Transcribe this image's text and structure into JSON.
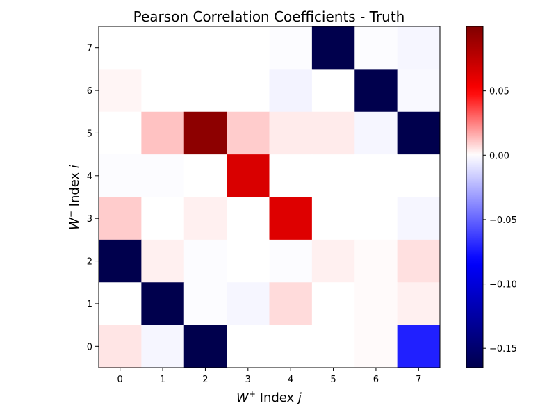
{
  "chart_data": {
    "type": "heatmap",
    "title": "Pearson Correlation Coefficients - Truth",
    "xlabel_main": "W",
    "xlabel_sup": "+",
    "xlabel_rest": " Index ",
    "xlabel_var": "j",
    "ylabel_main": "W",
    "ylabel_sup": "−",
    "ylabel_rest": " Index ",
    "ylabel_var": "i",
    "x_ticks": [
      "0",
      "1",
      "2",
      "3",
      "4",
      "5",
      "6",
      "7"
    ],
    "y_ticks": [
      "0",
      "1",
      "2",
      "3",
      "4",
      "5",
      "6",
      "7"
    ],
    "rows_top_to_bottom": [
      7,
      6,
      5,
      4,
      3,
      2,
      1,
      0
    ],
    "values": [
      [
        0.0,
        0.0,
        0.0,
        0.0,
        -0.001,
        -0.165,
        -0.001,
        -0.003
      ],
      [
        0.002,
        0.0,
        0.0,
        0.0,
        -0.004,
        0.0,
        -0.165,
        -0.002
      ],
      [
        0.0,
        0.012,
        0.095,
        0.01,
        0.004,
        0.004,
        -0.003,
        -0.165
      ],
      [
        -0.001,
        -0.001,
        0.0,
        0.065,
        0.0,
        0.0,
        0.0,
        0.0
      ],
      [
        0.01,
        0.0,
        0.003,
        0.0,
        0.063,
        0.0,
        0.0,
        -0.003
      ],
      [
        -0.165,
        0.003,
        -0.001,
        0.0,
        -0.001,
        0.003,
        0.001,
        0.006
      ],
      [
        0.0,
        -0.165,
        -0.001,
        -0.003,
        0.007,
        0.0,
        0.001,
        0.003
      ],
      [
        0.005,
        -0.003,
        -0.165,
        0.0,
        0.0,
        0.0,
        0.001,
        -0.072
      ]
    ],
    "colormap": "seismic",
    "vmin": -0.165,
    "vmax": 0.1,
    "colorbar_ticks": [
      {
        "value": 0.05,
        "label": "0.05"
      },
      {
        "value": 0.0,
        "label": "0.00"
      },
      {
        "value": -0.05,
        "label": "−0.05"
      },
      {
        "value": -0.1,
        "label": "−0.10"
      },
      {
        "value": -0.15,
        "label": "−0.15"
      }
    ],
    "grid": false
  }
}
